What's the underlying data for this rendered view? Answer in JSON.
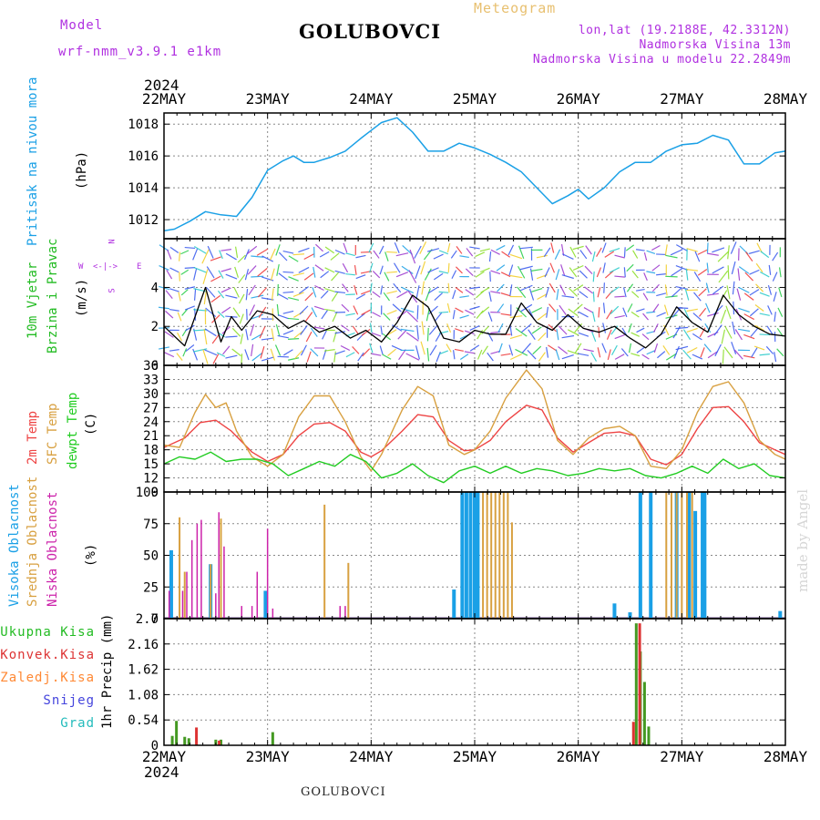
{
  "header": {
    "model_label": "Model",
    "model_name": "wrf-nmm_v3.9.1 e1km",
    "station": "GOLUBOVCI",
    "product": "Meteogram",
    "lonlat": "lon,lat (19.2188E, 42.3312N)",
    "altitude": "Nadmorska Visina 13m",
    "model_altitude": "Nadmorska Visina u modelu 22.2849m",
    "year_top": "2024",
    "year_bottom": "2024",
    "footer_station": "GOLUBOVCI",
    "credit": "made by Angel"
  },
  "colors": {
    "pressure": "#1aa0e6",
    "wind_label": "#22bb22",
    "temp2m": "#ee4444",
    "sfc": "#d8a040",
    "dew": "#22cc22",
    "high_cloud": "#1aa0e6",
    "mid_cloud": "#d8a040",
    "low_cloud": "#cc22aa",
    "total_precip": "#449922",
    "conv_precip": "#dd3333",
    "frz_precip": "#ff8833",
    "snow": "#4444dd",
    "hail": "#22bbbb",
    "compass": "#b030e0"
  },
  "time_axis": {
    "labels": [
      "22MAY",
      "23MAY",
      "24MAY",
      "25MAY",
      "26MAY",
      "27MAY",
      "28MAY"
    ]
  },
  "compass": {
    "n": "N",
    "w": "W",
    "e": "E",
    "s": "S"
  },
  "panel_labels": {
    "pressure": [
      "Pritisak na nivou mora",
      "(hPa)"
    ],
    "wind": [
      "10m Vjetar",
      "Brzina i Pravac",
      "(m/s)"
    ],
    "temp": [
      "2m Temp",
      "SFC Temp",
      "dewpt Temp",
      "(C)"
    ],
    "cloud": [
      "Visoka Oblacnost",
      "Srednja Oblacnost",
      "Niska Oblacnost",
      "(%)"
    ],
    "precip_unit": "1hr Precip (mm)",
    "precip_legend": [
      "Ukupna Kisa",
      "Konvek.Kisa",
      "Zaledj.Kisa",
      "Snijeg",
      "Grad"
    ]
  },
  "chart_data": [
    {
      "type": "line",
      "name": "pressure",
      "ylim": [
        1010.8,
        1018.7
      ],
      "yticks": [
        "1012",
        "1014",
        "1016",
        "1018"
      ],
      "x": [
        0,
        0.1,
        0.25,
        0.4,
        0.55,
        0.7,
        0.85,
        1.0,
        1.15,
        1.25,
        1.35,
        1.45,
        1.6,
        1.75,
        1.9,
        2.0,
        2.1,
        2.25,
        2.4,
        2.55,
        2.7,
        2.85,
        3.0,
        3.15,
        3.3,
        3.45,
        3.6,
        3.75,
        3.9,
        4.0,
        4.1,
        4.25,
        4.4,
        4.55,
        4.7,
        4.85,
        5.0,
        5.15,
        5.3,
        5.45,
        5.6,
        5.75,
        5.9,
        6.0
      ],
      "values": [
        1011.3,
        1011.4,
        1011.9,
        1012.5,
        1012.3,
        1012.2,
        1013.4,
        1015.1,
        1015.7,
        1016.0,
        1015.6,
        1015.6,
        1015.9,
        1016.3,
        1017.1,
        1017.6,
        1018.1,
        1018.4,
        1017.5,
        1016.3,
        1016.3,
        1016.8,
        1016.5,
        1016.1,
        1015.6,
        1015.0,
        1014.0,
        1013.0,
        1013.5,
        1013.9,
        1013.3,
        1014.0,
        1015.0,
        1015.6,
        1015.6,
        1016.3,
        1016.7,
        1016.8,
        1017.3,
        1017.0,
        1015.5,
        1015.5,
        1016.2,
        1016.3
      ]
    },
    {
      "type": "line",
      "name": "wind_speed",
      "ylim": [
        0,
        6.5
      ],
      "yticks": [
        "0",
        "2",
        "4"
      ],
      "x": [
        0,
        0.2,
        0.4,
        0.55,
        0.65,
        0.75,
        0.9,
        1.05,
        1.2,
        1.35,
        1.5,
        1.65,
        1.8,
        1.95,
        2.1,
        2.25,
        2.4,
        2.55,
        2.7,
        2.85,
        3.0,
        3.15,
        3.3,
        3.45,
        3.6,
        3.75,
        3.9,
        4.05,
        4.2,
        4.35,
        4.5,
        4.65,
        4.8,
        4.95,
        5.1,
        5.25,
        5.4,
        5.55,
        5.7,
        5.85,
        6.0
      ],
      "values": [
        2.0,
        1.0,
        4.0,
        1.2,
        2.5,
        1.8,
        2.8,
        2.6,
        1.9,
        2.3,
        1.7,
        2.0,
        1.4,
        1.8,
        1.2,
        2.2,
        3.6,
        3.0,
        1.4,
        1.2,
        1.8,
        1.6,
        1.6,
        3.2,
        2.2,
        1.8,
        2.6,
        1.9,
        1.7,
        2.0,
        1.4,
        0.9,
        1.6,
        3.0,
        2.2,
        1.7,
        3.6,
        2.6,
        2.0,
        1.6,
        1.5
      ]
    },
    {
      "type": "line",
      "name": "temperature",
      "ylim": [
        9,
        36
      ],
      "yticks": [
        "9",
        "12",
        "15",
        "18",
        "21",
        "24",
        "27",
        "30",
        "33",
        "36"
      ],
      "series": [
        {
          "name": "2m Temp",
          "x": [
            0,
            0.2,
            0.35,
            0.5,
            0.65,
            0.85,
            1.0,
            1.15,
            1.3,
            1.45,
            1.6,
            1.75,
            1.9,
            2.0,
            2.1,
            2.3,
            2.45,
            2.6,
            2.75,
            2.9,
            3.0,
            3.15,
            3.3,
            3.5,
            3.65,
            3.8,
            3.95,
            4.1,
            4.25,
            4.4,
            4.55,
            4.7,
            4.85,
            5.0,
            5.15,
            5.3,
            5.45,
            5.6,
            5.75,
            5.9,
            6.0
          ],
          "values": [
            18.5,
            20.5,
            23.8,
            24.3,
            22.0,
            17.5,
            15.5,
            17.0,
            21.0,
            23.5,
            23.8,
            22.0,
            17.5,
            16.5,
            17.8,
            22.0,
            25.5,
            25.0,
            20.0,
            17.8,
            18.0,
            20.0,
            24.0,
            27.5,
            26.5,
            20.5,
            17.5,
            19.5,
            21.5,
            21.8,
            21.0,
            16.0,
            14.8,
            17.0,
            22.5,
            27.0,
            27.2,
            24.0,
            19.5,
            18.0,
            17.0
          ]
        },
        {
          "name": "SFC Temp",
          "x": [
            0,
            0.15,
            0.3,
            0.4,
            0.5,
            0.6,
            0.7,
            0.85,
            1.0,
            1.15,
            1.3,
            1.45,
            1.6,
            1.75,
            1.9,
            2.0,
            2.1,
            2.3,
            2.45,
            2.6,
            2.75,
            2.9,
            3.0,
            3.15,
            3.3,
            3.5,
            3.65,
            3.8,
            3.95,
            4.1,
            4.25,
            4.4,
            4.55,
            4.7,
            4.85,
            5.0,
            5.15,
            5.3,
            5.45,
            5.6,
            5.75,
            5.9,
            6.0
          ],
          "values": [
            19.0,
            18.5,
            26.0,
            29.8,
            27.0,
            28.0,
            22.0,
            16.5,
            14.5,
            17.0,
            25.0,
            29.5,
            29.5,
            24.0,
            16.5,
            13.5,
            17.0,
            26.5,
            31.5,
            29.5,
            19.0,
            17.0,
            18.0,
            22.0,
            29.0,
            35.0,
            31.0,
            20.0,
            17.0,
            20.5,
            22.5,
            23.0,
            21.0,
            14.5,
            14.0,
            18.0,
            26.0,
            31.5,
            32.5,
            28.0,
            20.0,
            17.0,
            16.0
          ]
        },
        {
          "name": "dewpt Temp",
          "x": [
            0,
            0.15,
            0.3,
            0.45,
            0.6,
            0.75,
            0.9,
            1.05,
            1.2,
            1.35,
            1.5,
            1.65,
            1.8,
            1.95,
            2.1,
            2.25,
            2.4,
            2.55,
            2.7,
            2.85,
            3.0,
            3.15,
            3.3,
            3.45,
            3.6,
            3.75,
            3.9,
            4.05,
            4.2,
            4.35,
            4.5,
            4.65,
            4.8,
            4.95,
            5.1,
            5.25,
            5.4,
            5.55,
            5.7,
            5.85,
            6.0
          ],
          "values": [
            15.0,
            16.5,
            16.0,
            17.5,
            15.5,
            16.0,
            16.0,
            15.0,
            12.5,
            14.0,
            15.5,
            14.5,
            17.0,
            15.5,
            12.0,
            13.0,
            15.0,
            12.5,
            11.0,
            13.5,
            14.5,
            13.0,
            14.5,
            13.0,
            14.0,
            13.5,
            12.5,
            13.0,
            14.0,
            13.5,
            14.0,
            12.5,
            12.0,
            13.0,
            14.5,
            13.0,
            16.0,
            14.0,
            15.0,
            12.5,
            12.0
          ]
        }
      ]
    },
    {
      "type": "bar",
      "name": "cloud_cover",
      "ylim": [
        0,
        100
      ],
      "yticks": [
        "0",
        "25",
        "50",
        "75",
        "100"
      ],
      "series": [
        {
          "name": "Visoka Oblacnost",
          "x": [
            0.07,
            0.45,
            0.98,
            2.8,
            2.88,
            2.92,
            2.96,
            3.0,
            3.03,
            4.35,
            4.5,
            4.6,
            4.7,
            4.95,
            5.07,
            5.13,
            5.2,
            5.22,
            5.95
          ],
          "values": [
            54,
            43,
            22,
            23,
            100,
            100,
            100,
            100,
            100,
            12,
            5,
            100,
            100,
            100,
            100,
            85,
            100,
            100,
            6
          ]
        },
        {
          "name": "Srednja Oblacnost",
          "x": [
            0.15,
            0.2,
            0.45,
            0.55,
            1.55,
            1.78,
            3.08,
            3.12,
            3.16,
            3.2,
            3.24,
            3.28,
            3.32,
            3.36,
            4.85,
            4.9,
            4.95,
            5.0,
            5.05,
            5.1
          ],
          "values": [
            80,
            37,
            43,
            79,
            90,
            44,
            100,
            100,
            100,
            100,
            100,
            100,
            100,
            76,
            100,
            100,
            100,
            100,
            100,
            100
          ]
        },
        {
          "name": "Niska Oblacnost",
          "x": [
            0.05,
            0.18,
            0.22,
            0.27,
            0.32,
            0.36,
            0.5,
            0.53,
            0.58,
            0.75,
            0.85,
            0.9,
            1.0,
            1.05,
            1.7,
            1.75
          ],
          "values": [
            22,
            22,
            37,
            62,
            75,
            78,
            20,
            84,
            57,
            10,
            10,
            37,
            71,
            8,
            10,
            10
          ]
        }
      ]
    },
    {
      "type": "bar",
      "name": "precipitation",
      "ylim": [
        0,
        2.7
      ],
      "yticks": [
        "0",
        "0.54",
        "1.08",
        "1.62",
        "2.16",
        "2.7"
      ],
      "series": [
        {
          "name": "Ukupna Kisa",
          "x": [
            0.08,
            0.12,
            0.2,
            0.24,
            0.5,
            0.55,
            1.05,
            4.56,
            4.6,
            4.64,
            4.68
          ],
          "values": [
            0.2,
            0.52,
            0.18,
            0.15,
            0.12,
            0.12,
            0.28,
            2.6,
            2.0,
            1.35,
            0.4
          ]
        },
        {
          "name": "Konvek.Kisa",
          "x": [
            0.3,
            0.52,
            4.52,
            4.58
          ],
          "values": [
            0.38,
            0.1,
            0.5,
            2.6
          ]
        }
      ]
    }
  ]
}
